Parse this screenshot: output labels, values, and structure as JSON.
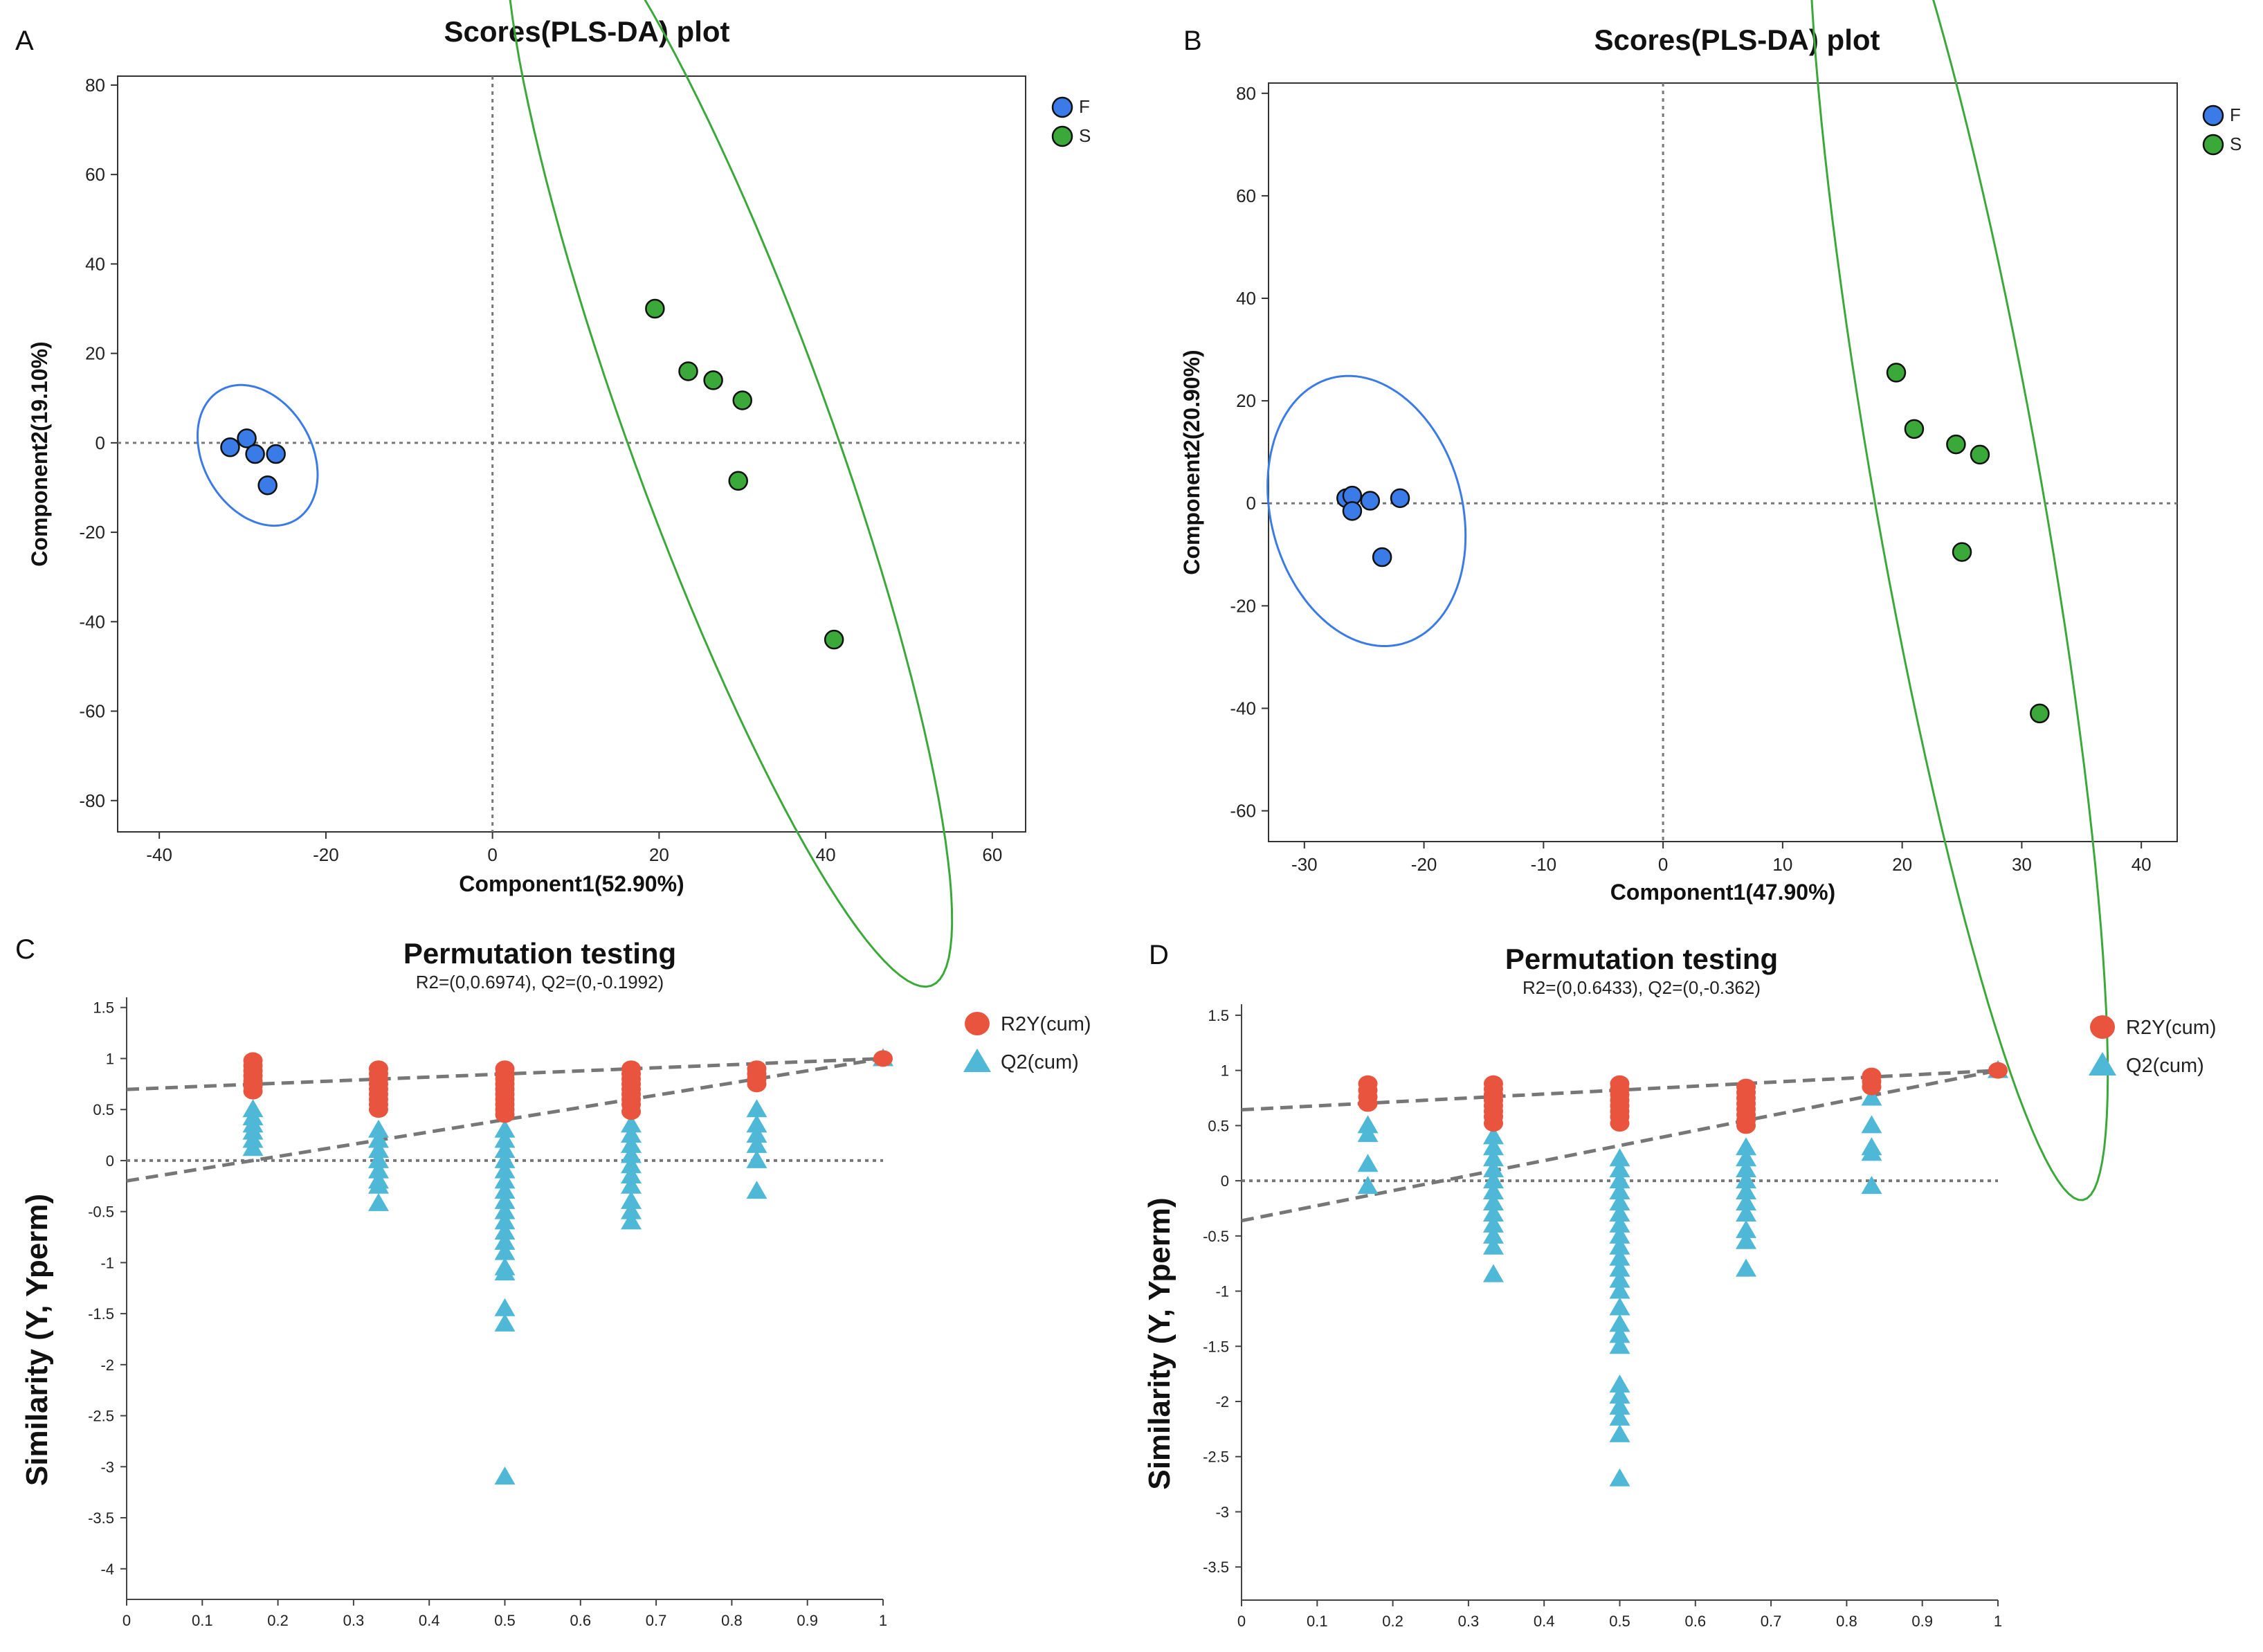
{
  "chart_data": [
    {
      "panel": "A",
      "type": "scatter",
      "title": "Scores(PLS-DA) plot",
      "xlabel": "Component1(52.90%)",
      "ylabel": "Component2(19.10%)",
      "xlim": [
        -45,
        64
      ],
      "ylim": [
        -87,
        82
      ],
      "xticks": [
        -40,
        -20,
        0,
        20,
        40,
        60
      ],
      "yticks": [
        -80,
        -60,
        -40,
        -20,
        0,
        20,
        40,
        60,
        80
      ],
      "grid": false,
      "legend": "top-right",
      "series": [
        {
          "name": "F",
          "color": "#3b7be8",
          "points": [
            [
              -31.5,
              -1
            ],
            [
              -29.5,
              1
            ],
            [
              -28.5,
              -2.5
            ],
            [
              -26,
              -2.5
            ],
            [
              -27,
              -9.5
            ]
          ],
          "ellipse": {
            "center": [
              -28.2,
              -2.8
            ],
            "axes": [
              9,
              6.5
            ],
            "angle_deg": -60
          }
        },
        {
          "name": "S",
          "color": "#3aa93a",
          "points": [
            [
              19.5,
              30
            ],
            [
              23.5,
              16
            ],
            [
              26.5,
              14
            ],
            [
              30,
              9.5
            ],
            [
              29.5,
              -8.5
            ],
            [
              41,
              -44
            ]
          ],
          "ellipse": {
            "center": [
              28.4,
              2.9
            ],
            "axes": [
              71,
              12
            ],
            "angle_deg": -70
          }
        }
      ]
    },
    {
      "panel": "B",
      "type": "scatter",
      "title": "Scores(PLS-DA) plot",
      "xlabel": "Component1(47.90%)",
      "ylabel": "Component2(20.90%)",
      "xlim": [
        -33,
        43
      ],
      "ylim": [
        -66,
        82
      ],
      "xticks": [
        -30,
        -20,
        -10,
        0,
        10,
        20,
        30,
        40
      ],
      "yticks": [
        -60,
        -40,
        -20,
        0,
        20,
        40,
        60,
        80
      ],
      "grid": false,
      "legend": "top-right",
      "series": [
        {
          "name": "F",
          "color": "#3b7be8",
          "points": [
            [
              -26.5,
              1
            ],
            [
              -26,
              1.5
            ],
            [
              -24.5,
              0.5
            ],
            [
              -22,
              1
            ],
            [
              -26,
              -1.5
            ],
            [
              -23.5,
              -10.5
            ]
          ],
          "ellipse": {
            "center": [
              -24.8,
              -1.5
            ],
            "axes": [
              11.5,
              8
            ],
            "angle_deg": -75
          }
        },
        {
          "name": "S",
          "color": "#3aa93a",
          "points": [
            [
              19.5,
              25.5
            ],
            [
              21,
              14.5
            ],
            [
              24.5,
              11.5
            ],
            [
              26.5,
              9.5
            ],
            [
              25,
              -9.5
            ],
            [
              31.5,
              -41
            ]
          ],
          "ellipse": {
            "center": [
              24.7,
              1.9
            ],
            "axes": [
              60,
              7
            ],
            "angle_deg": -80
          }
        }
      ]
    },
    {
      "panel": "C",
      "type": "scatter",
      "title": "Permutation testing",
      "subtitle": "R2=(0,0.6974), Q2=(0,-0.1992)",
      "xlabel": "",
      "ylabel": "Similarity (Y, Yperm)",
      "xlim": [
        0,
        1
      ],
      "ylim": [
        -4.3,
        1.6
      ],
      "xticks": [
        "0",
        "0.1",
        "0.2",
        "0.3",
        "0.4",
        "0.5",
        "0.6",
        "0.7",
        "0.8",
        "0.9",
        "1"
      ],
      "yticks": [
        "1.5",
        "1",
        "0.5",
        "0",
        "-0.5",
        "-1",
        "-1.5",
        "-2",
        "-2.5",
        "-3",
        "-3.5",
        "-4"
      ],
      "legend": "top-right",
      "series": [
        {
          "name": "R2Y(cum)",
          "color": "#e8543e",
          "marker": "circle",
          "points": [
            [
              0.167,
              0.98
            ],
            [
              0.167,
              0.93
            ],
            [
              0.167,
              0.88
            ],
            [
              0.167,
              0.83
            ],
            [
              0.167,
              0.78
            ],
            [
              0.167,
              0.73
            ],
            [
              0.167,
              0.68
            ],
            [
              0.333,
              0.9
            ],
            [
              0.333,
              0.85
            ],
            [
              0.333,
              0.8
            ],
            [
              0.333,
              0.75
            ],
            [
              0.333,
              0.7
            ],
            [
              0.333,
              0.65
            ],
            [
              0.333,
              0.6
            ],
            [
              0.333,
              0.55
            ],
            [
              0.333,
              0.5
            ],
            [
              0.5,
              0.9
            ],
            [
              0.5,
              0.85
            ],
            [
              0.5,
              0.8
            ],
            [
              0.5,
              0.75
            ],
            [
              0.5,
              0.7
            ],
            [
              0.5,
              0.65
            ],
            [
              0.5,
              0.6
            ],
            [
              0.5,
              0.55
            ],
            [
              0.5,
              0.5
            ],
            [
              0.5,
              0.45
            ],
            [
              0.667,
              0.9
            ],
            [
              0.667,
              0.85
            ],
            [
              0.667,
              0.8
            ],
            [
              0.667,
              0.75
            ],
            [
              0.667,
              0.7
            ],
            [
              0.667,
              0.65
            ],
            [
              0.667,
              0.6
            ],
            [
              0.667,
              0.55
            ],
            [
              0.667,
              0.48
            ],
            [
              0.833,
              0.9
            ],
            [
              0.833,
              0.85
            ],
            [
              0.833,
              0.8
            ],
            [
              0.833,
              0.75
            ],
            [
              1.0,
              1.0
            ]
          ]
        },
        {
          "name": "Q2(cum)",
          "color": "#4fb8d6",
          "marker": "triangle",
          "points": [
            [
              0.167,
              0.5
            ],
            [
              0.167,
              0.42
            ],
            [
              0.167,
              0.35
            ],
            [
              0.167,
              0.28
            ],
            [
              0.167,
              0.2
            ],
            [
              0.167,
              0.12
            ],
            [
              0.333,
              0.3
            ],
            [
              0.333,
              0.2
            ],
            [
              0.333,
              0.1
            ],
            [
              0.333,
              0.0
            ],
            [
              0.333,
              -0.1
            ],
            [
              0.333,
              -0.2
            ],
            [
              0.333,
              -0.25
            ],
            [
              0.333,
              -0.42
            ],
            [
              0.5,
              0.3
            ],
            [
              0.5,
              0.2
            ],
            [
              0.5,
              0.1
            ],
            [
              0.5,
              0.0
            ],
            [
              0.5,
              -0.1
            ],
            [
              0.5,
              -0.2
            ],
            [
              0.5,
              -0.3
            ],
            [
              0.5,
              -0.4
            ],
            [
              0.5,
              -0.5
            ],
            [
              0.5,
              -0.6
            ],
            [
              0.5,
              -0.7
            ],
            [
              0.5,
              -0.8
            ],
            [
              0.5,
              -0.9
            ],
            [
              0.5,
              -1.05
            ],
            [
              0.5,
              -1.1
            ],
            [
              0.5,
              -1.45
            ],
            [
              0.5,
              -1.6
            ],
            [
              0.5,
              -3.1
            ],
            [
              0.667,
              0.35
            ],
            [
              0.667,
              0.25
            ],
            [
              0.667,
              0.15
            ],
            [
              0.667,
              0.05
            ],
            [
              0.667,
              -0.05
            ],
            [
              0.667,
              -0.15
            ],
            [
              0.667,
              -0.25
            ],
            [
              0.667,
              -0.4
            ],
            [
              0.667,
              -0.5
            ],
            [
              0.667,
              -0.6
            ],
            [
              0.833,
              0.5
            ],
            [
              0.833,
              0.35
            ],
            [
              0.833,
              0.25
            ],
            [
              0.833,
              0.15
            ],
            [
              0.833,
              0.0
            ],
            [
              0.833,
              -0.3
            ],
            [
              1.0,
              1.0
            ]
          ]
        }
      ],
      "lines": [
        {
          "name": "R2 regression",
          "x": [
            0,
            1
          ],
          "y": [
            0.6974,
            1.0
          ],
          "style": "dashed"
        },
        {
          "name": "Q2 regression",
          "x": [
            0,
            1
          ],
          "y": [
            -0.1992,
            1.0
          ],
          "style": "dashed"
        },
        {
          "name": "zero line",
          "x": [
            0,
            1
          ],
          "y": [
            0,
            0
          ],
          "style": "dotted"
        }
      ]
    },
    {
      "panel": "D",
      "type": "scatter",
      "title": "Permutation testing",
      "subtitle": "R2=(0,0.6433), Q2=(0,-0.362)",
      "xlabel": "",
      "ylabel": "Similarity (Y, Yperm)",
      "xlim": [
        0,
        1
      ],
      "ylim": [
        -3.8,
        1.6
      ],
      "xticks": [
        "0",
        "0.1",
        "0.2",
        "0.3",
        "0.4",
        "0.5",
        "0.6",
        "0.7",
        "0.8",
        "0.9",
        "1"
      ],
      "yticks": [
        "1.5",
        "1",
        "0.5",
        "0",
        "-0.5",
        "-1",
        "-1.5",
        "-2",
        "-2.5",
        "-3",
        "-3.5"
      ],
      "legend": "top-right",
      "series": [
        {
          "name": "R2Y(cum)",
          "color": "#e8543e",
          "marker": "circle",
          "points": [
            [
              0.167,
              0.88
            ],
            [
              0.167,
              0.82
            ],
            [
              0.167,
              0.76
            ],
            [
              0.167,
              0.7
            ],
            [
              0.333,
              0.88
            ],
            [
              0.333,
              0.83
            ],
            [
              0.333,
              0.78
            ],
            [
              0.333,
              0.73
            ],
            [
              0.333,
              0.68
            ],
            [
              0.333,
              0.63
            ],
            [
              0.333,
              0.58
            ],
            [
              0.333,
              0.52
            ],
            [
              0.5,
              0.88
            ],
            [
              0.5,
              0.83
            ],
            [
              0.5,
              0.78
            ],
            [
              0.5,
              0.73
            ],
            [
              0.5,
              0.68
            ],
            [
              0.5,
              0.63
            ],
            [
              0.5,
              0.58
            ],
            [
              0.5,
              0.52
            ],
            [
              0.667,
              0.85
            ],
            [
              0.667,
              0.8
            ],
            [
              0.667,
              0.75
            ],
            [
              0.667,
              0.7
            ],
            [
              0.667,
              0.65
            ],
            [
              0.667,
              0.6
            ],
            [
              0.667,
              0.55
            ],
            [
              0.667,
              0.5
            ],
            [
              0.833,
              0.95
            ],
            [
              0.833,
              0.9
            ],
            [
              0.833,
              0.85
            ],
            [
              1.0,
              1.0
            ]
          ]
        },
        {
          "name": "Q2(cum)",
          "color": "#4fb8d6",
          "marker": "triangle",
          "points": [
            [
              0.167,
              0.5
            ],
            [
              0.167,
              0.42
            ],
            [
              0.167,
              0.15
            ],
            [
              0.167,
              -0.05
            ],
            [
              0.333,
              0.4
            ],
            [
              0.333,
              0.3
            ],
            [
              0.333,
              0.2
            ],
            [
              0.333,
              0.1
            ],
            [
              0.333,
              0.0
            ],
            [
              0.333,
              -0.1
            ],
            [
              0.333,
              -0.2
            ],
            [
              0.333,
              -0.3
            ],
            [
              0.333,
              -0.4
            ],
            [
              0.333,
              -0.5
            ],
            [
              0.333,
              -0.6
            ],
            [
              0.333,
              -0.85
            ],
            [
              0.5,
              0.2
            ],
            [
              0.5,
              0.1
            ],
            [
              0.5,
              0.0
            ],
            [
              0.5,
              -0.1
            ],
            [
              0.5,
              -0.2
            ],
            [
              0.5,
              -0.3
            ],
            [
              0.5,
              -0.4
            ],
            [
              0.5,
              -0.5
            ],
            [
              0.5,
              -0.6
            ],
            [
              0.5,
              -0.7
            ],
            [
              0.5,
              -0.8
            ],
            [
              0.5,
              -0.9
            ],
            [
              0.5,
              -1.0
            ],
            [
              0.5,
              -1.15
            ],
            [
              0.5,
              -1.3
            ],
            [
              0.5,
              -1.4
            ],
            [
              0.5,
              -1.5
            ],
            [
              0.5,
              -1.85
            ],
            [
              0.5,
              -1.95
            ],
            [
              0.5,
              -2.05
            ],
            [
              0.5,
              -2.15
            ],
            [
              0.5,
              -2.3
            ],
            [
              0.5,
              -2.7
            ],
            [
              0.667,
              0.3
            ],
            [
              0.667,
              0.2
            ],
            [
              0.667,
              0.1
            ],
            [
              0.667,
              0.0
            ],
            [
              0.667,
              -0.1
            ],
            [
              0.667,
              -0.2
            ],
            [
              0.667,
              -0.3
            ],
            [
              0.667,
              -0.45
            ],
            [
              0.667,
              -0.55
            ],
            [
              0.667,
              -0.8
            ],
            [
              0.833,
              0.75
            ],
            [
              0.833,
              0.5
            ],
            [
              0.833,
              0.3
            ],
            [
              0.833,
              0.25
            ],
            [
              0.833,
              -0.05
            ],
            [
              1.0,
              1.0
            ]
          ]
        }
      ],
      "lines": [
        {
          "name": "R2 regression",
          "x": [
            0,
            1
          ],
          "y": [
            0.6433,
            1.0
          ],
          "style": "dashed"
        },
        {
          "name": "Q2 regression",
          "x": [
            0,
            1
          ],
          "y": [
            -0.362,
            1.0
          ],
          "style": "dashed"
        },
        {
          "name": "zero line",
          "x": [
            0,
            1
          ],
          "y": [
            0,
            0
          ],
          "style": "dotted"
        }
      ]
    }
  ]
}
